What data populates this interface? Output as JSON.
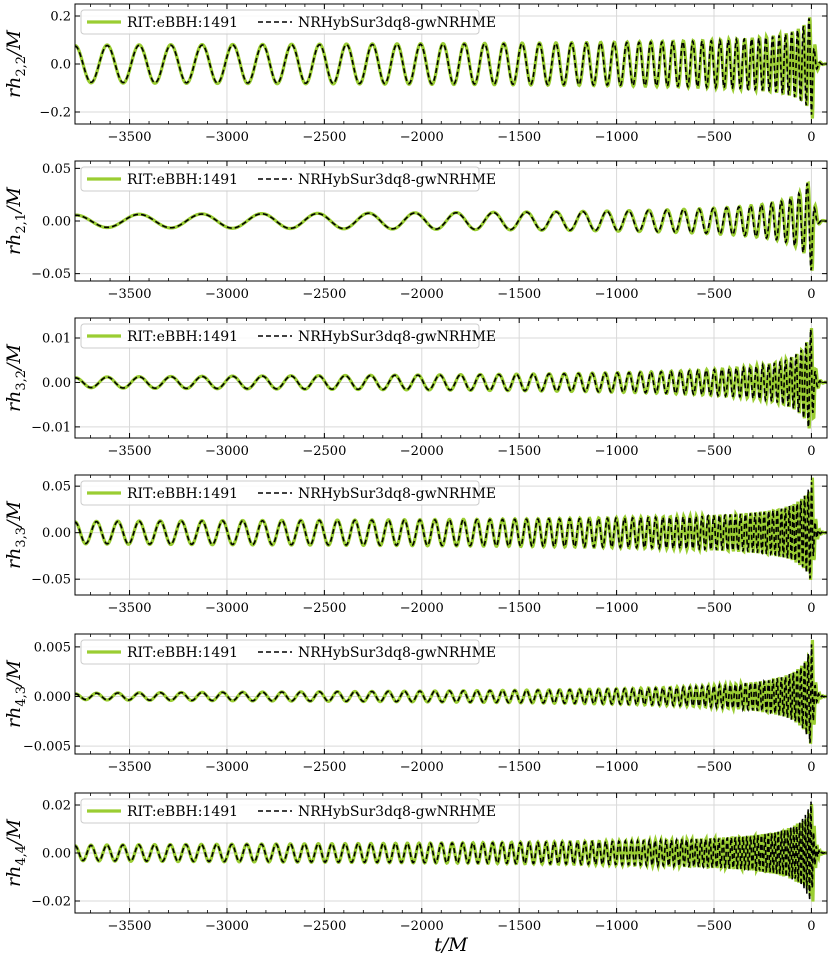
{
  "chart_data": {
    "type": "line",
    "xlabel": "t/M",
    "xlim": [
      -3780,
      80
    ],
    "xticks": [
      -3500,
      -3000,
      -2500,
      -2000,
      -1500,
      -1000,
      -500,
      0
    ],
    "xtick_labels": [
      "−3500",
      "−3000",
      "−2500",
      "−2000",
      "−1500",
      "−1000",
      "−500",
      "0"
    ],
    "grid": true,
    "legend_placement": "top-left",
    "colors": {
      "series_a": "#9acd32",
      "series_b": "#000000"
    },
    "series_names": [
      "RIT:eBBH:1491",
      "NRHybSur3dq8-gwNRHME"
    ],
    "panels": [
      {
        "mode": "2,2",
        "ylabel_main": "rh",
        "ylabel_sub": "2,2",
        "ylabel_tail": "/M",
        "ylim": [
          -0.25,
          0.25
        ],
        "yticks": [
          -0.2,
          0.0,
          0.2
        ],
        "ytick_labels": [
          "−0.2",
          "0.0",
          "0.2"
        ],
        "amp_start": 0.075,
        "amp_peak": 0.23,
        "period_start": 165,
        "period_end": 28
      },
      {
        "mode": "2,1",
        "ylabel_main": "rh",
        "ylabel_sub": "2,1",
        "ylabel_tail": "/M",
        "ylim": [
          -0.057,
          0.057
        ],
        "yticks": [
          -0.05,
          0.0,
          0.05
        ],
        "ytick_labels": [
          "−0.05",
          "0.00",
          "0.05"
        ],
        "amp_start": 0.005,
        "amp_peak": 0.05,
        "period_start": 330,
        "period_end": 40
      },
      {
        "mode": "3,2",
        "ylabel_main": "rh",
        "ylabel_sub": "3,2",
        "ylabel_tail": "/M",
        "ylim": [
          -0.0125,
          0.0145
        ],
        "yticks": [
          -0.01,
          0.0,
          0.01
        ],
        "ytick_labels": [
          "−0.01",
          "0.00",
          "0.01"
        ],
        "amp_start": 0.0009,
        "amp_peak": 0.0135,
        "period_start": 165,
        "period_end": 24
      },
      {
        "mode": "3,3",
        "ylabel_main": "rh",
        "ylabel_sub": "3,3",
        "ylabel_tail": "/M",
        "ylim": [
          -0.067,
          0.062
        ],
        "yticks": [
          -0.05,
          0.0,
          0.05
        ],
        "ytick_labels": [
          "−0.05",
          "0.00",
          "0.05"
        ],
        "amp_start": 0.011,
        "amp_peak": 0.06,
        "period_start": 110,
        "period_end": 18
      },
      {
        "mode": "4,3",
        "ylabel_main": "rh",
        "ylabel_sub": "4,3",
        "ylabel_tail": "/M",
        "ylim": [
          -0.0058,
          0.0063
        ],
        "yticks": [
          -0.005,
          0.0,
          0.005
        ],
        "ytick_labels": [
          "−0.005",
          "0.000",
          "0.005"
        ],
        "amp_start": 0.0002,
        "amp_peak": 0.0058,
        "period_start": 110,
        "period_end": 18
      },
      {
        "mode": "4,4",
        "ylabel_main": "rh",
        "ylabel_sub": "4,4",
        "ylabel_tail": "/M",
        "ylim": [
          -0.025,
          0.025
        ],
        "yticks": [
          -0.02,
          0.0,
          0.02
        ],
        "ytick_labels": [
          "−0.02",
          "0.00",
          "0.02"
        ],
        "amp_start": 0.0028,
        "amp_peak": 0.024,
        "period_start": 82,
        "period_end": 14
      }
    ]
  }
}
